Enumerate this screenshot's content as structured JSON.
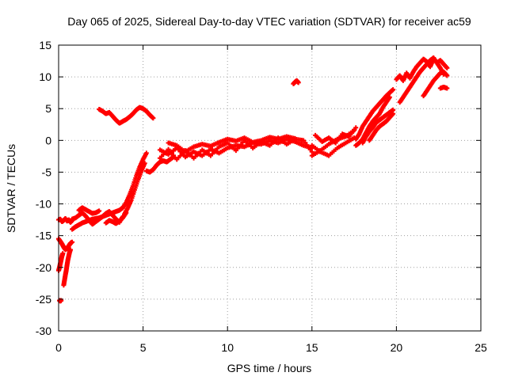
{
  "chart_data": {
    "type": "scatter",
    "title": "Day 065 of 2025, Sidereal Day-to-day VTEC variation (SDTVAR) for receiver ac59",
    "xlabel": "GPS time / hours",
    "ylabel": "SDTVAR / TECUs",
    "xlim": [
      0,
      25
    ],
    "ylim": [
      -30,
      15
    ],
    "xticks": [
      0,
      5,
      10,
      15,
      20,
      25
    ],
    "yticks": [
      -30,
      -25,
      -20,
      -15,
      -10,
      -5,
      0,
      5,
      10,
      15
    ],
    "grid": true,
    "marker": "+",
    "color": "#ff0000",
    "series": [
      {
        "name": "SDTVAR",
        "segments": [
          {
            "x": [
              0.0,
              0.1,
              0.2,
              0.3,
              0.4,
              0.5,
              0.6,
              0.7,
              0.8
            ],
            "y": [
              -12.5,
              -12.4,
              -12.8,
              -12.6,
              -12.3,
              -12.7,
              -12.5,
              -12.9,
              -12.6
            ]
          },
          {
            "x": [
              0.0,
              0.1,
              0.2,
              0.3,
              0.4,
              0.5,
              0.6,
              0.7,
              0.8
            ],
            "y": [
              -15.5,
              -15.9,
              -16.3,
              -16.8,
              -17.2,
              -17.0,
              -16.6,
              -16.2,
              -16.0
            ]
          },
          {
            "x": [
              0.0,
              0.05,
              0.1,
              0.15,
              0.2,
              0.25
            ],
            "y": [
              -20.5,
              -20.0,
              -19.4,
              -18.8,
              -18.2,
              -17.8
            ]
          },
          {
            "x": [
              0.3,
              0.35,
              0.4,
              0.45,
              0.5,
              0.55,
              0.6,
              0.65,
              0.7
            ],
            "y": [
              -22.8,
              -22.0,
              -21.2,
              -20.5,
              -19.6,
              -18.8,
              -18.2,
              -17.6,
              -17.2
            ]
          },
          {
            "x": [
              0.05,
              0.1,
              0.15
            ],
            "y": [
              -25.2,
              -25.3,
              -25.2
            ]
          },
          {
            "x": [
              0.8,
              1.0,
              1.2,
              1.4,
              1.6,
              1.8,
              2.0,
              2.2,
              2.4,
              2.6,
              2.8,
              3.0,
              3.2,
              3.4,
              3.6,
              3.8
            ],
            "y": [
              -14.0,
              -13.6,
              -13.3,
              -13.0,
              -12.8,
              -12.6,
              -12.4,
              -12.3,
              -12.2,
              -12.0,
              -11.8,
              -11.6,
              -11.4,
              -11.2,
              -11.0,
              -10.6
            ]
          },
          {
            "x": [
              0.8,
              1.0,
              1.2,
              1.4,
              1.6,
              1.8,
              2.0,
              2.2,
              2.4,
              2.6,
              2.8,
              3.0,
              3.2,
              3.4,
              3.6,
              3.8
            ],
            "y": [
              -12.4,
              -12.2,
              -11.8,
              -11.4,
              -11.9,
              -12.6,
              -13.2,
              -12.8,
              -12.4,
              -12.0,
              -11.5,
              -11.2,
              -11.8,
              -12.4,
              -12.9,
              -12.0
            ]
          },
          {
            "x": [
              1.2,
              1.4,
              1.6,
              1.8,
              2.0,
              2.2,
              2.4
            ],
            "y": [
              -11.0,
              -10.6,
              -10.9,
              -11.2,
              -11.5,
              -11.4,
              -11.1
            ]
          },
          {
            "x": [
              2.8,
              3.0,
              3.2,
              3.4,
              3.6,
              3.8,
              4.0
            ],
            "y": [
              -13.0,
              -12.6,
              -12.8,
              -13.1,
              -12.7,
              -12.2,
              -11.4
            ]
          },
          {
            "x": [
              3.8,
              4.0,
              4.2,
              4.4,
              4.6,
              4.8,
              5.0,
              5.2
            ],
            "y": [
              -10.6,
              -9.8,
              -8.6,
              -7.2,
              -5.6,
              -4.2,
              -3.0,
              -2.0
            ]
          },
          {
            "x": [
              3.9,
              4.1,
              4.3,
              4.5,
              4.7,
              4.9,
              5.1
            ],
            "y": [
              -11.6,
              -10.6,
              -9.4,
              -7.8,
              -6.2,
              -4.8,
              -3.6
            ]
          },
          {
            "x": [
              2.4,
              2.6,
              2.8,
              3.0,
              3.2,
              3.4,
              3.6,
              3.8,
              4.0,
              4.2,
              4.4,
              4.6,
              4.8,
              5.0,
              5.2,
              5.4,
              5.6
            ],
            "y": [
              4.9,
              4.6,
              4.2,
              4.4,
              3.8,
              3.2,
              2.7,
              3.0,
              3.3,
              3.7,
              4.2,
              4.8,
              5.2,
              5.0,
              4.6,
              4.0,
              3.5
            ]
          },
          {
            "x": [
              5.2,
              5.4,
              5.6,
              5.8,
              6.0,
              6.2,
              6.4,
              6.6,
              6.8
            ],
            "y": [
              -4.8,
              -5.0,
              -4.6,
              -3.9,
              -3.4,
              -3.2,
              -3.4,
              -3.0,
              -2.6
            ]
          },
          {
            "x": [
              6.0,
              6.5,
              7.0,
              7.5,
              8.0,
              8.5,
              9.0,
              9.5,
              10.0,
              10.5,
              11.0,
              11.5,
              12.0,
              12.5,
              13.0,
              13.5,
              14.0,
              14.5,
              15.0
            ],
            "y": [
              -1.5,
              -2.2,
              -1.2,
              -2.6,
              -1.8,
              -2.4,
              -1.4,
              -2.0,
              -1.2,
              -0.8,
              -1.0,
              -0.4,
              -0.6,
              0.0,
              -0.4,
              0.2,
              -0.2,
              -0.8,
              -1.2
            ]
          },
          {
            "x": [
              6.0,
              6.5,
              7.0,
              7.5,
              8.0,
              8.5,
              9.0,
              9.5,
              10.0,
              10.5,
              11.0,
              11.5,
              12.0,
              12.5,
              13.0,
              13.5,
              14.0,
              14.5,
              15.0
            ],
            "y": [
              -2.8,
              -1.4,
              -3.0,
              -1.6,
              -2.8,
              -1.5,
              -2.4,
              -1.0,
              -0.4,
              -1.6,
              0.0,
              -1.2,
              -0.2,
              -0.8,
              0.4,
              -0.6,
              0.2,
              0.0,
              -1.8
            ]
          },
          {
            "x": [
              6.5,
              7.0,
              7.5,
              8.0,
              8.5,
              9.0,
              9.5,
              10.0,
              10.5,
              11.0,
              11.5,
              12.0,
              12.5,
              13.0,
              13.5,
              14.0
            ],
            "y": [
              -0.4,
              -0.8,
              -1.8,
              -1.0,
              -0.6,
              -0.9,
              -0.3,
              0.2,
              -0.1,
              0.4,
              -0.3,
              0.0,
              0.5,
              0.2,
              0.6,
              0.3
            ]
          },
          {
            "x": [
              13.9,
              14.0,
              14.1,
              14.2
            ],
            "y": [
              8.9,
              9.2,
              9.4,
              9.1
            ]
          },
          {
            "x": [
              15.0,
              15.5,
              16.0,
              16.5,
              17.0,
              17.5
            ],
            "y": [
              -2.4,
              -1.6,
              -0.6,
              0.2,
              0.6,
              1.6
            ]
          },
          {
            "x": [
              15.0,
              15.5,
              16.0,
              16.5,
              17.0,
              17.5
            ],
            "y": [
              -0.8,
              -1.8,
              -2.4,
              -1.2,
              -0.4,
              0.4
            ]
          },
          {
            "x": [
              15.2,
              15.6,
              16.0,
              16.4,
              16.8,
              17.2,
              17.6
            ],
            "y": [
              0.8,
              -0.2,
              0.4,
              -0.4,
              1.0,
              0.6,
              2.0
            ]
          },
          {
            "x": [
              17.6,
              17.8,
              18.0,
              18.2,
              18.4,
              18.6,
              18.8,
              19.0,
              19.2,
              19.4,
              19.6,
              19.8
            ],
            "y": [
              0.2,
              1.0,
              2.2,
              3.0,
              3.8,
              4.6,
              5.2,
              5.8,
              6.4,
              7.0,
              7.5,
              8.0
            ]
          },
          {
            "x": [
              17.6,
              17.8,
              18.0,
              18.2,
              18.4,
              18.6,
              18.8,
              19.0,
              19.2,
              19.4,
              19.6
            ],
            "y": [
              -0.8,
              -0.4,
              0.2,
              1.2,
              2.2,
              3.0,
              3.6,
              4.2,
              5.2,
              6.0,
              6.8
            ]
          },
          {
            "x": [
              18.0,
              18.2,
              18.4,
              18.6,
              18.8,
              19.0,
              19.2,
              19.4,
              19.6,
              19.8
            ],
            "y": [
              -0.4,
              0.6,
              1.4,
              2.0,
              2.8,
              3.2,
              3.6,
              4.0,
              4.4,
              4.8
            ]
          },
          {
            "x": [
              18.4,
              18.6,
              18.8,
              19.0,
              19.2,
              19.4,
              19.6,
              19.8
            ],
            "y": [
              0.0,
              0.8,
              1.6,
              2.2,
              2.6,
              3.0,
              3.6,
              4.2
            ]
          },
          {
            "x": [
              20.0,
              20.2,
              20.4,
              20.6,
              20.8,
              21.0,
              21.2,
              21.4,
              21.6,
              21.8,
              22.0,
              22.2,
              22.4,
              22.6,
              22.8,
              23.0
            ],
            "y": [
              9.6,
              10.2,
              9.4,
              10.6,
              9.8,
              10.8,
              11.6,
              12.2,
              12.8,
              12.4,
              11.6,
              12.8,
              12.2,
              12.6,
              12.0,
              11.4
            ]
          },
          {
            "x": [
              20.2,
              20.4,
              20.6,
              20.8,
              21.0,
              21.2,
              21.4,
              21.6,
              21.8,
              22.0,
              22.2,
              22.4,
              22.6,
              22.8
            ],
            "y": [
              6.0,
              6.8,
              7.6,
              8.4,
              9.2,
              10.0,
              10.8,
              11.4,
              12.0,
              12.6,
              13.0,
              12.2,
              11.4,
              10.4
            ]
          },
          {
            "x": [
              21.6,
              21.8,
              22.0,
              22.2,
              22.4,
              22.6,
              22.8,
              23.0
            ],
            "y": [
              7.0,
              7.8,
              8.6,
              9.4,
              10.0,
              10.6,
              10.8,
              10.2
            ]
          },
          {
            "x": [
              22.6,
              22.8,
              23.0
            ],
            "y": [
              8.2,
              8.4,
              8.2
            ]
          }
        ]
      }
    ]
  }
}
